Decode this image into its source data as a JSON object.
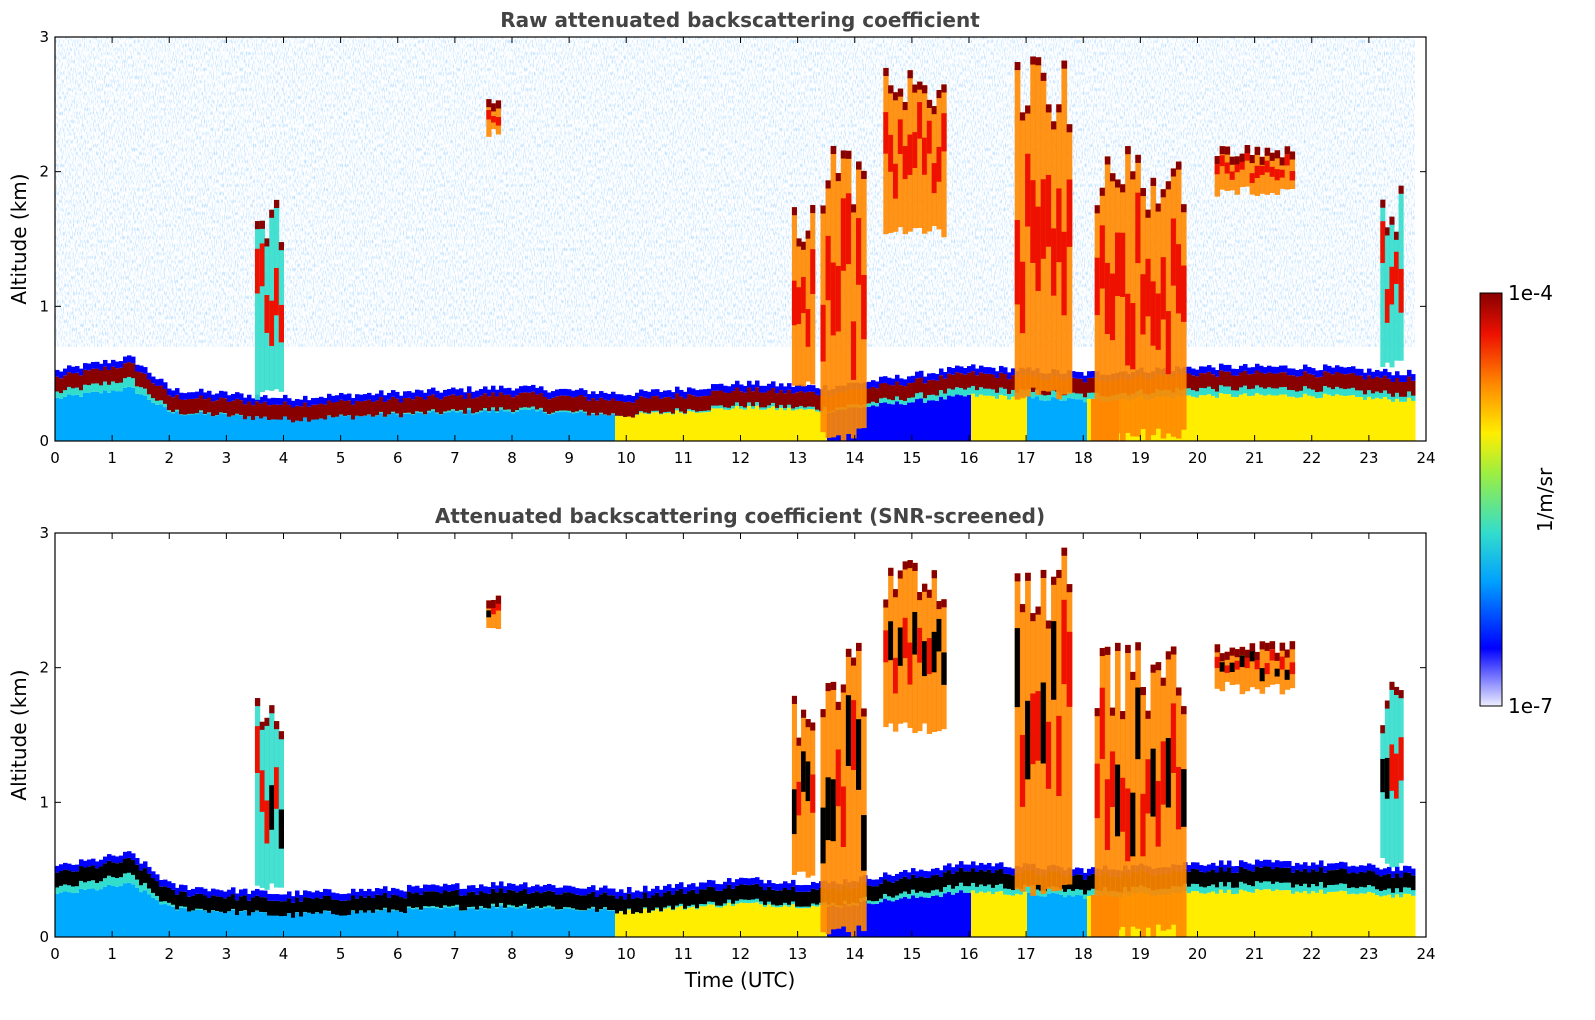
{
  "chart_data": [
    {
      "type": "heatmap",
      "title": "Raw attenuated backscattering coefficient",
      "xlabel": "",
      "ylabel": "Altitude (km)",
      "xlim": [
        0,
        24
      ],
      "ylim": [
        0,
        3
      ],
      "x_ticks": [
        "0",
        "1",
        "2",
        "3",
        "4",
        "5",
        "6",
        "7",
        "8",
        "9",
        "10",
        "11",
        "12",
        "13",
        "14",
        "15",
        "16",
        "17",
        "18",
        "19",
        "20",
        "21",
        "22",
        "23",
        "24"
      ],
      "y_ticks": [
        "0",
        "1",
        "2",
        "3"
      ],
      "data_end_hour": 23.8,
      "boundary_layer_top_km": [
        {
          "t": 0,
          "h": 0.42
        },
        {
          "t": 1,
          "h": 0.5
        },
        {
          "t": 1.3,
          "h": 0.52
        },
        {
          "t": 2,
          "h": 0.28
        },
        {
          "t": 4,
          "h": 0.22
        },
        {
          "t": 6,
          "h": 0.26
        },
        {
          "t": 8,
          "h": 0.3
        },
        {
          "t": 10,
          "h": 0.25
        },
        {
          "t": 12,
          "h": 0.33
        },
        {
          "t": 13.5,
          "h": 0.3
        },
        {
          "t": 16,
          "h": 0.45
        },
        {
          "t": 18,
          "h": 0.4
        },
        {
          "t": 20,
          "h": 0.45
        },
        {
          "t": 22,
          "h": 0.45
        },
        {
          "t": 23.8,
          "h": 0.4
        }
      ],
      "cloud_features": [
        {
          "t_start": 3.5,
          "t_end": 4.0,
          "base_km": 0.3,
          "top_km": 1.8,
          "intensity": "medium"
        },
        {
          "t_start": 7.55,
          "t_end": 7.8,
          "base_km": 2.25,
          "top_km": 2.55,
          "intensity": "high"
        },
        {
          "t_start": 12.9,
          "t_end": 13.3,
          "base_km": 0.4,
          "top_km": 1.8,
          "intensity": "high"
        },
        {
          "t_start": 13.4,
          "t_end": 14.2,
          "base_km": 0.0,
          "top_km": 2.2,
          "intensity": "high"
        },
        {
          "t_start": 14.5,
          "t_end": 15.6,
          "base_km": 1.5,
          "top_km": 2.8,
          "intensity": "high"
        },
        {
          "t_start": 16.8,
          "t_end": 17.8,
          "base_km": 0.3,
          "top_km": 3.0,
          "intensity": "high"
        },
        {
          "t_start": 18.2,
          "t_end": 19.8,
          "base_km": 0.0,
          "top_km": 2.2,
          "intensity": "high"
        },
        {
          "t_start": 20.3,
          "t_end": 21.7,
          "base_km": 1.8,
          "top_km": 2.2,
          "intensity": "high"
        },
        {
          "t_start": 23.2,
          "t_end": 23.6,
          "base_km": 0.5,
          "top_km": 1.9,
          "intensity": "medium"
        }
      ]
    },
    {
      "type": "heatmap",
      "title": "Attenuated backscattering coefficient (SNR-screened)",
      "xlabel": "Time (UTC)",
      "ylabel": "Altitude (km)",
      "xlim": [
        0,
        24
      ],
      "ylim": [
        0,
        3
      ],
      "x_ticks": [
        "0",
        "1",
        "2",
        "3",
        "4",
        "5",
        "6",
        "7",
        "8",
        "9",
        "10",
        "11",
        "12",
        "13",
        "14",
        "15",
        "16",
        "17",
        "18",
        "19",
        "20",
        "21",
        "22",
        "23",
        "24"
      ],
      "y_ticks": [
        "0",
        "1",
        "2",
        "3"
      ],
      "data_end_hour": 23.8
    }
  ],
  "colorbar": {
    "label": "1/m/sr",
    "max_label": "1e-4",
    "min_label": "1e-7",
    "colormap": "jet",
    "stops": [
      "#eeeeff",
      "#0000ff",
      "#00aaff",
      "#33ddcc",
      "#99ee44",
      "#ffee00",
      "#ff8800",
      "#ee1100",
      "#880000"
    ]
  }
}
